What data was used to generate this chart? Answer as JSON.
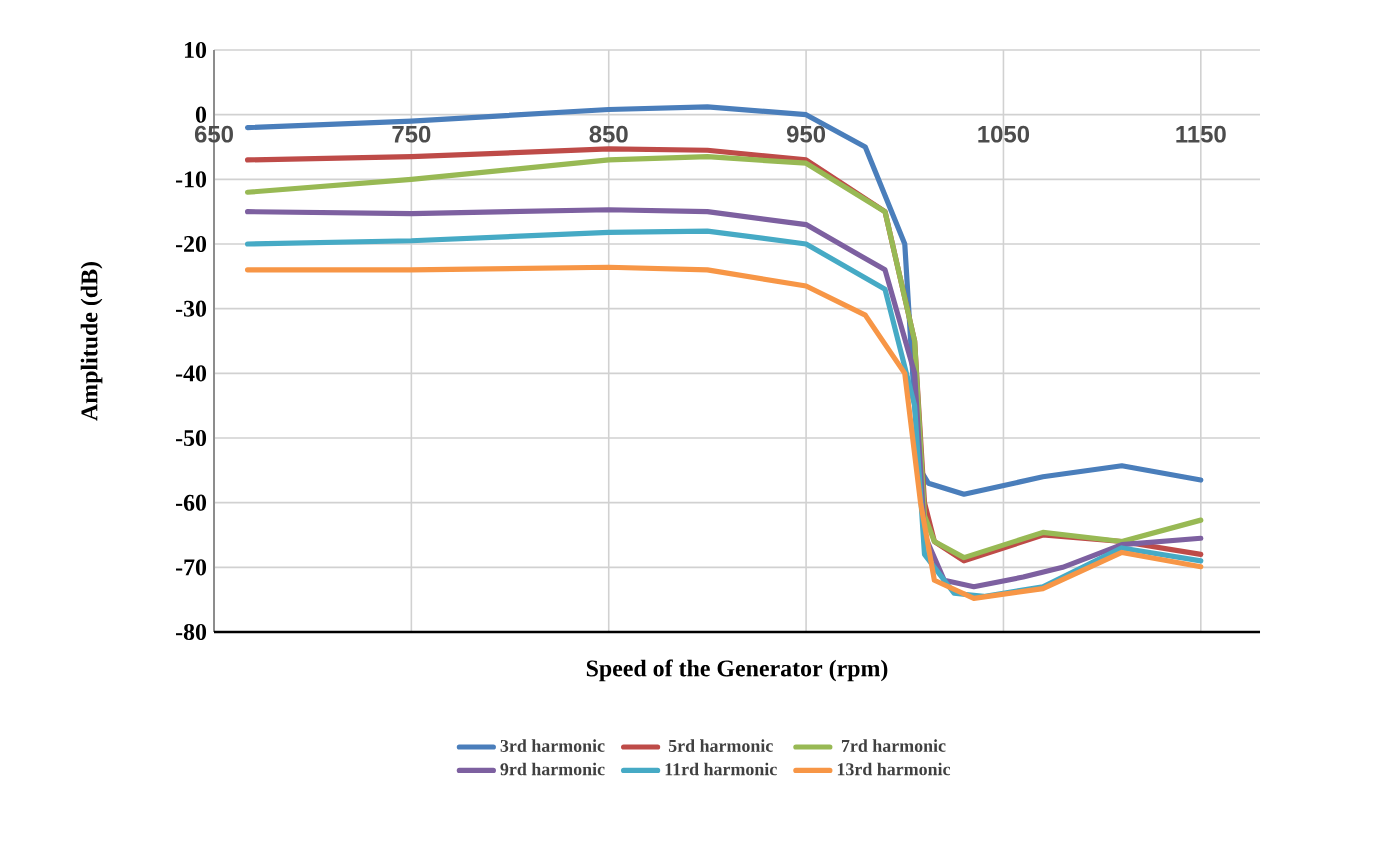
{
  "chart_data": {
    "type": "line",
    "xlabel": "Speed of the Generator (rpm)",
    "ylabel": "Amplitude (dB)",
    "xlim": [
      650,
      1180
    ],
    "xticks": [
      650,
      750,
      850,
      950,
      1050,
      1150
    ],
    "ylim": [
      -80,
      10
    ],
    "yticks": [
      -80,
      -70,
      -60,
      -50,
      -40,
      -30,
      -20,
      -10,
      0,
      10
    ],
    "grid": true,
    "legend": "bottom",
    "marker": "none",
    "line_style": "solid",
    "series": [
      {
        "name": "3rd harmonic",
        "color": "#4a7ebb",
        "x": [
          667,
          750,
          850,
          900,
          950,
          980,
          1000,
          1005,
          1008,
          1012,
          1030,
          1070,
          1110,
          1150
        ],
        "values": [
          -2,
          -1,
          0.8,
          1.2,
          0,
          -5,
          -20,
          -45,
          -55,
          -57,
          -58.7,
          -56,
          -54.3,
          -56.5
        ]
      },
      {
        "name": "5rd harmonic",
        "color": "#be4b48",
        "x": [
          667,
          750,
          850,
          900,
          950,
          990,
          1005,
          1010,
          1015,
          1030,
          1070,
          1110,
          1150
        ],
        "values": [
          -7,
          -6.5,
          -5.3,
          -5.5,
          -7,
          -15,
          -35,
          -60,
          -66,
          -69,
          -65,
          -66,
          -68
        ]
      },
      {
        "name": "7rd harmonic",
        "color": "#98b954",
        "x": [
          667,
          750,
          850,
          900,
          950,
          990,
          1005,
          1010,
          1015,
          1030,
          1070,
          1110,
          1150
        ],
        "values": [
          -12,
          -10,
          -7,
          -6.5,
          -7.5,
          -15,
          -35,
          -62,
          -66,
          -68.5,
          -64.6,
          -66,
          -62.7
        ]
      },
      {
        "name": "9rd harmonic",
        "color": "#7d60a0",
        "x": [
          667,
          750,
          850,
          900,
          950,
          990,
          1005,
          1010,
          1020,
          1035,
          1060,
          1080,
          1110,
          1150
        ],
        "values": [
          -15,
          -15.3,
          -14.7,
          -15,
          -17,
          -24,
          -40,
          -65,
          -72,
          -73,
          -71.5,
          -70,
          -66.5,
          -65.5
        ]
      },
      {
        "name": "11rd harmonic",
        "color": "#46aac5",
        "x": [
          667,
          750,
          850,
          900,
          950,
          990,
          1005,
          1010,
          1025,
          1040,
          1070,
          1110,
          1150
        ],
        "values": [
          -20,
          -19.5,
          -18.2,
          -18,
          -20,
          -27,
          -45,
          -68,
          -74,
          -74.5,
          -73,
          -67,
          -69
        ]
      },
      {
        "name": "13rd harmonic",
        "color": "#f79646",
        "x": [
          667,
          750,
          850,
          900,
          950,
          980,
          1000,
          1008,
          1015,
          1035,
          1070,
          1110,
          1150
        ],
        "values": [
          -24,
          -24,
          -23.6,
          -24,
          -26.5,
          -31,
          -40,
          -60,
          -72,
          -74.8,
          -73.3,
          -67.7,
          -69.9
        ]
      }
    ]
  }
}
